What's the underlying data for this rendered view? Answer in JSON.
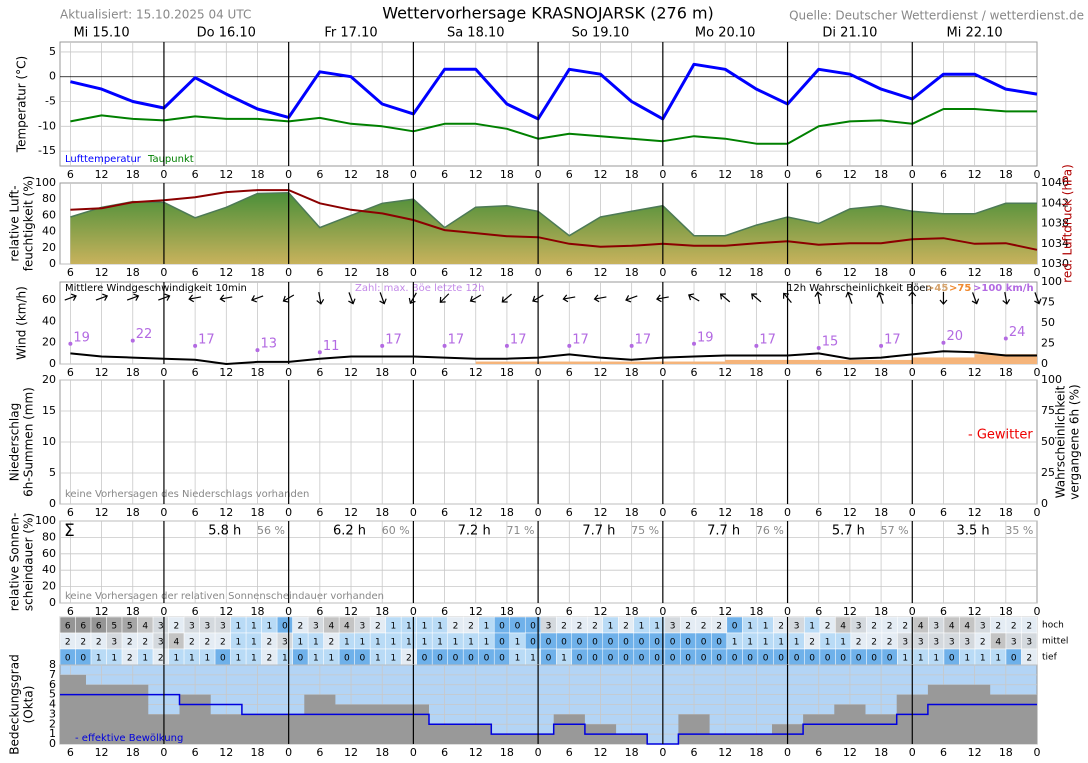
{
  "header": {
    "updated": "Aktualisiert: 15.10.2025 04 UTC",
    "title": "Wettervorhersage KRASNOJARSK (276 m)",
    "source": "Quelle: Deutscher Wetterdienst / wetterdienst.de"
  },
  "days": [
    "Mi 15.10",
    "Do 16.10",
    "Fr 17.10",
    "Sa 18.10",
    "So 19.10",
    "Mo 20.10",
    "Di 21.10",
    "Mi 22.10"
  ],
  "time_axis": {
    "xlim": [
      4,
      192
    ],
    "xticks": [
      6,
      12,
      18,
      {
        "value": 24,
        "label": "0"
      },
      {
        "value": 30,
        "label": "6"
      },
      {
        "value": 36,
        "label": "12"
      },
      {
        "value": 42,
        "label": "18"
      },
      {
        "value": 48,
        "label": "0"
      },
      {
        "value": 54,
        "label": "6"
      },
      {
        "value": 60,
        "label": "12"
      },
      {
        "value": 66,
        "label": "18"
      },
      {
        "value": 72,
        "label": "0"
      },
      {
        "value": 78,
        "label": "6"
      },
      {
        "value": 84,
        "label": "12"
      },
      {
        "value": 90,
        "label": "18"
      },
      {
        "value": 96,
        "label": "0"
      },
      {
        "value": 102,
        "label": "6"
      },
      {
        "value": 108,
        "label": "12"
      },
      {
        "value": 114,
        "label": "18"
      },
      {
        "value": 120,
        "label": "0"
      },
      {
        "value": 126,
        "label": "6"
      },
      {
        "value": 132,
        "label": "12"
      },
      {
        "value": 138,
        "label": "18"
      },
      {
        "value": 144,
        "label": "0"
      },
      {
        "value": 150,
        "label": "6"
      },
      {
        "value": 156,
        "label": "12"
      },
      {
        "value": 162,
        "label": "18"
      },
      {
        "value": 168,
        "label": "0"
      },
      {
        "value": 174,
        "label": "6"
      },
      {
        "value": 180,
        "label": "12"
      },
      {
        "value": 186,
        "label": "18"
      },
      {
        "value": 192,
        "label": "0"
      }
    ]
  },
  "chart_data": [
    {
      "type": "line",
      "ylabel": [
        "Temperatur (°C)"
      ],
      "ylim": [
        -18,
        7
      ],
      "yticks": [
        -15,
        -10,
        -5,
        0,
        5
      ],
      "grid": true,
      "x": [
        6,
        12,
        18,
        24,
        30,
        36,
        42,
        48,
        54,
        60,
        66,
        72,
        78,
        84,
        90,
        96,
        102,
        108,
        114,
        120,
        126,
        132,
        138,
        144,
        150,
        156,
        162,
        168,
        174,
        180,
        186,
        192
      ],
      "series": [
        {
          "name": "Lufttemperatur",
          "color": "#0000ff",
          "values": [
            -1,
            -2.5,
            -5,
            -6.3,
            -0.2,
            -3.5,
            -6.5,
            -8.2,
            1,
            0,
            -5.5,
            -7.5,
            1.5,
            1.5,
            -5.5,
            -8.5,
            1.5,
            0.5,
            -5,
            -8.5,
            2.5,
            1.5,
            -2.5,
            -5.5,
            1.5,
            0.5,
            -2.5,
            -4.5,
            0.5,
            0.5,
            -2.5,
            -3.5
          ]
        },
        {
          "name": "Taupunkt",
          "color": "#008000",
          "values": [
            -9,
            -7.8,
            -8.5,
            -8.8,
            -8,
            -8.5,
            -8.5,
            -9,
            -8.3,
            -9.5,
            -10,
            -11,
            -9.5,
            -9.5,
            -10.5,
            -12.5,
            -11.5,
            -12,
            -12.5,
            -13,
            -12,
            -12.5,
            -13.5,
            -13.5,
            -10,
            -9,
            -8.8,
            -9.5,
            -6.5,
            -6.5,
            -7,
            -7
          ]
        }
      ]
    },
    {
      "type": "area",
      "ylabel": [
        "relative Luft-",
        "feuchtigkeit (%)"
      ],
      "ylim": [
        0,
        100
      ],
      "yticks": [
        0,
        20,
        40,
        60,
        80,
        100
      ],
      "y2label": [
        "red. Luftdruck (hPa)"
      ],
      "y2label_color": "#b00000",
      "y2lim": [
        1030,
        1046
      ],
      "y2ticks": [
        1030,
        1034,
        1038,
        1042,
        1046
      ],
      "grid": false,
      "x": [
        6,
        12,
        18,
        24,
        30,
        36,
        42,
        48,
        54,
        60,
        66,
        72,
        78,
        84,
        90,
        96,
        102,
        108,
        114,
        120,
        126,
        132,
        138,
        144,
        150,
        156,
        162,
        168,
        174,
        180,
        186,
        192
      ],
      "series": [
        {
          "colors": [
            "#3a8a34",
            "#c8b25c"
          ],
          "values": [
            58,
            70,
            77,
            76,
            57,
            70,
            87,
            88,
            45,
            60,
            75,
            80,
            45,
            70,
            72,
            65,
            35,
            58,
            65,
            72,
            35,
            35,
            48,
            58,
            50,
            68,
            72,
            65,
            62,
            62,
            75,
            75
          ]
        },
        {
          "color": "#8b0000",
          "axis": "y2",
          "values": [
            1040.7,
            1041,
            1042.2,
            1042.6,
            1043.2,
            1044.2,
            1044.6,
            1044.6,
            1042,
            1040.7,
            1040,
            1038.7,
            1036.7,
            1036.1,
            1035.5,
            1035.3,
            1034,
            1033.4,
            1033.6,
            1034,
            1033.6,
            1033.6,
            1034.1,
            1034.5,
            1033.8,
            1034.1,
            1034.1,
            1034.9,
            1035.1,
            1034,
            1034.1,
            1032.8
          ]
        }
      ]
    },
    {
      "type": "wind",
      "ylabel": [
        "Wind (km/h)"
      ],
      "ylim": [
        0,
        77
      ],
      "yticks": [
        0,
        20,
        40,
        60
      ],
      "y2lim": [
        0,
        100
      ],
      "y2ticks": [
        0,
        25,
        50,
        75,
        100
      ],
      "grid": false,
      "x": [
        6,
        12,
        18,
        24,
        30,
        36,
        42,
        48,
        54,
        60,
        66,
        72,
        78,
        84,
        90,
        96,
        102,
        108,
        114,
        120,
        126,
        132,
        138,
        144,
        150,
        156,
        162,
        168,
        174,
        180,
        186,
        192
      ],
      "series": [
        {
          "name": "Mittlere Windgeschwindigkeit 10min",
          "color": "#000000",
          "values": [
            10,
            7,
            6,
            5,
            4,
            0,
            2,
            2,
            5,
            7,
            7,
            7,
            6,
            5,
            5,
            6,
            9,
            6,
            4,
            6,
            7,
            8,
            8,
            8,
            10,
            5,
            6,
            9,
            12,
            11,
            8,
            8
          ]
        }
      ],
      "directions": [
        250,
        250,
        250,
        250,
        80,
        80,
        70,
        60,
        350,
        340,
        340,
        30,
        45,
        60,
        50,
        60,
        80,
        80,
        70,
        80,
        120,
        130,
        130,
        140,
        170,
        160,
        160,
        180,
        0,
        340,
        350,
        340
      ],
      "gusts": {
        "name": "Zahl: max. Böe letzte 12h",
        "color": "#b36ae2",
        "x": [
          6,
          18,
          30,
          42,
          54,
          66,
          78,
          90,
          102,
          114,
          126,
          138,
          150,
          162,
          174,
          186
        ],
        "values": [
          19,
          22,
          17,
          13,
          11,
          17,
          17,
          17,
          17,
          17,
          19,
          17,
          15,
          17,
          20,
          24
        ]
      },
      "gust_probability": {
        "name": "12h Wahrscheinlichkeit Böen",
        "color": "#f5b47a",
        "axis": "y2",
        "x": [
          6,
          18,
          30,
          42,
          54,
          66,
          78,
          90,
          102,
          114,
          126,
          138,
          150,
          162,
          174,
          186
        ],
        "values": [
          0,
          0,
          0,
          0,
          0,
          0,
          0,
          3,
          3,
          3,
          3,
          5,
          5,
          5,
          8,
          12
        ]
      },
      "thresholds": [
        {
          "label": ">45",
          "color": "#d6a36c"
        },
        {
          "label": ">75",
          "color": "#f08a30"
        },
        {
          "label": ">100 km/h",
          "color": "#b36ae2"
        }
      ]
    },
    {
      "type": "precipitation",
      "ylabel": [
        "Niederschlag",
        "6h-Summen (mm)"
      ],
      "ylim": [
        0,
        20
      ],
      "yticks": [
        0,
        5,
        10,
        15,
        20
      ],
      "y2label": [
        "Wahrscheinlichkeit",
        "vergangene 6h (%)"
      ],
      "y2lim": [
        0,
        100
      ],
      "y2ticks": [
        0,
        25,
        50,
        75,
        100
      ],
      "grid": true,
      "note": "keine Vorhersagen des Niederschlags vorhanden",
      "thunder": {
        "label": "- Gewitter",
        "color": "#ee0000"
      }
    },
    {
      "type": "sunshine",
      "ylabel": [
        "relative Sonnen-",
        "scheindauer (%)"
      ],
      "ylim": [
        0,
        100
      ],
      "yticks": [
        0,
        20,
        40,
        60,
        80,
        100
      ],
      "grid": true,
      "symbol": "Σ",
      "note": "keine Vorhersagen der relativen Sonnenscheindauer vorhanden",
      "daily_hours": {
        "values": [
          5.8,
          6.2,
          7.2,
          7.7,
          7.7,
          5.7,
          3.5
        ],
        "value_labels": [
          "5.8 h",
          "6.2 h",
          "7.2 h",
          "7.7 h",
          "7.7 h",
          "5.7 h",
          "3.5 h"
        ]
      },
      "daily_percent": {
        "values": [
          56,
          60,
          71,
          75,
          76,
          57,
          35
        ],
        "value_labels": [
          "56 %",
          "60 %",
          "71 %",
          "75 %",
          "76 %",
          "57 %",
          "35 %"
        ]
      }
    },
    {
      "type": "table",
      "cell_colors": [
        "#6fb1ea",
        "#b9dbf6",
        "#e4ecf4",
        "#d4d9de",
        "#c4c4c4",
        "#a6a6a6",
        "#959595",
        "#8a8a8a",
        "#808080"
      ],
      "rows": [
        {
          "name": "hoch",
          "values": [
            6,
            6,
            6,
            5,
            5,
            4,
            3,
            2,
            3,
            3,
            3,
            1,
            1,
            1,
            0,
            2,
            3,
            4,
            4,
            3,
            2,
            1,
            1,
            1,
            1,
            2,
            2,
            1,
            0,
            0,
            0,
            3,
            2,
            2,
            2,
            1,
            2,
            1,
            1,
            3,
            2,
            2,
            2,
            0,
            1,
            1,
            2,
            3,
            1,
            2,
            4,
            3,
            2,
            2,
            2,
            4,
            3,
            4,
            4,
            3,
            2,
            2,
            2
          ]
        },
        {
          "name": "mittel",
          "values": [
            2,
            2,
            2,
            3,
            2,
            2,
            3,
            4,
            2,
            2,
            2,
            1,
            1,
            2,
            3,
            1,
            1,
            2,
            1,
            1,
            1,
            1,
            1,
            1,
            1,
            1,
            1,
            1,
            0,
            1,
            0,
            0,
            0,
            0,
            0,
            0,
            0,
            0,
            0,
            0,
            0,
            0,
            0,
            1,
            1,
            1,
            1,
            1,
            2,
            1,
            1,
            2,
            2,
            2,
            3,
            3,
            3,
            3,
            3,
            2,
            4,
            3,
            3
          ]
        },
        {
          "name": "tief",
          "values": [
            0,
            0,
            1,
            1,
            2,
            1,
            2,
            1,
            1,
            1,
            0,
            1,
            1,
            2,
            1,
            0,
            1,
            1,
            0,
            0,
            1,
            1,
            2,
            0,
            0,
            0,
            0,
            0,
            0,
            1,
            1,
            0,
            1,
            0,
            0,
            0,
            0,
            0,
            0,
            0,
            0,
            0,
            0,
            0,
            0,
            0,
            0,
            0,
            0,
            0,
            0,
            0,
            0,
            0,
            1,
            1,
            1,
            0,
            1,
            1,
            1,
            0,
            2
          ]
        }
      ]
    },
    {
      "type": "step",
      "ylabel": [
        "Bedeckungsgrad",
        "(Okta)"
      ],
      "ylim": [
        0,
        8
      ],
      "yticks": [
        0,
        1,
        2,
        3,
        4,
        5,
        6,
        7,
        8
      ],
      "grid": true,
      "background": "#b3d4f5",
      "x": [
        6,
        12,
        18,
        24,
        30,
        36,
        42,
        48,
        54,
        60,
        66,
        72,
        78,
        84,
        90,
        96,
        102,
        108,
        114,
        120,
        126,
        132,
        138,
        144,
        150,
        156,
        162,
        168,
        174,
        180,
        186,
        192
      ],
      "series": [
        {
          "color": "#999999",
          "values": [
            7,
            6,
            6,
            3,
            5,
            3,
            3,
            3,
            5,
            4,
            4,
            4,
            2,
            2,
            1,
            1,
            3,
            2,
            1,
            0,
            3,
            1,
            1,
            2,
            3,
            4,
            3,
            5,
            6,
            6,
            5,
            5
          ]
        },
        {
          "name": "- effektive Bewölkung",
          "color": "#0000dd",
          "values": [
            5,
            5,
            5,
            5,
            4,
            4,
            3,
            3,
            3,
            3,
            3,
            3,
            2,
            2,
            1,
            1,
            2,
            1,
            1,
            0,
            1,
            1,
            1,
            1,
            2,
            2,
            2,
            3,
            4,
            4,
            4,
            4
          ]
        }
      ]
    }
  ]
}
